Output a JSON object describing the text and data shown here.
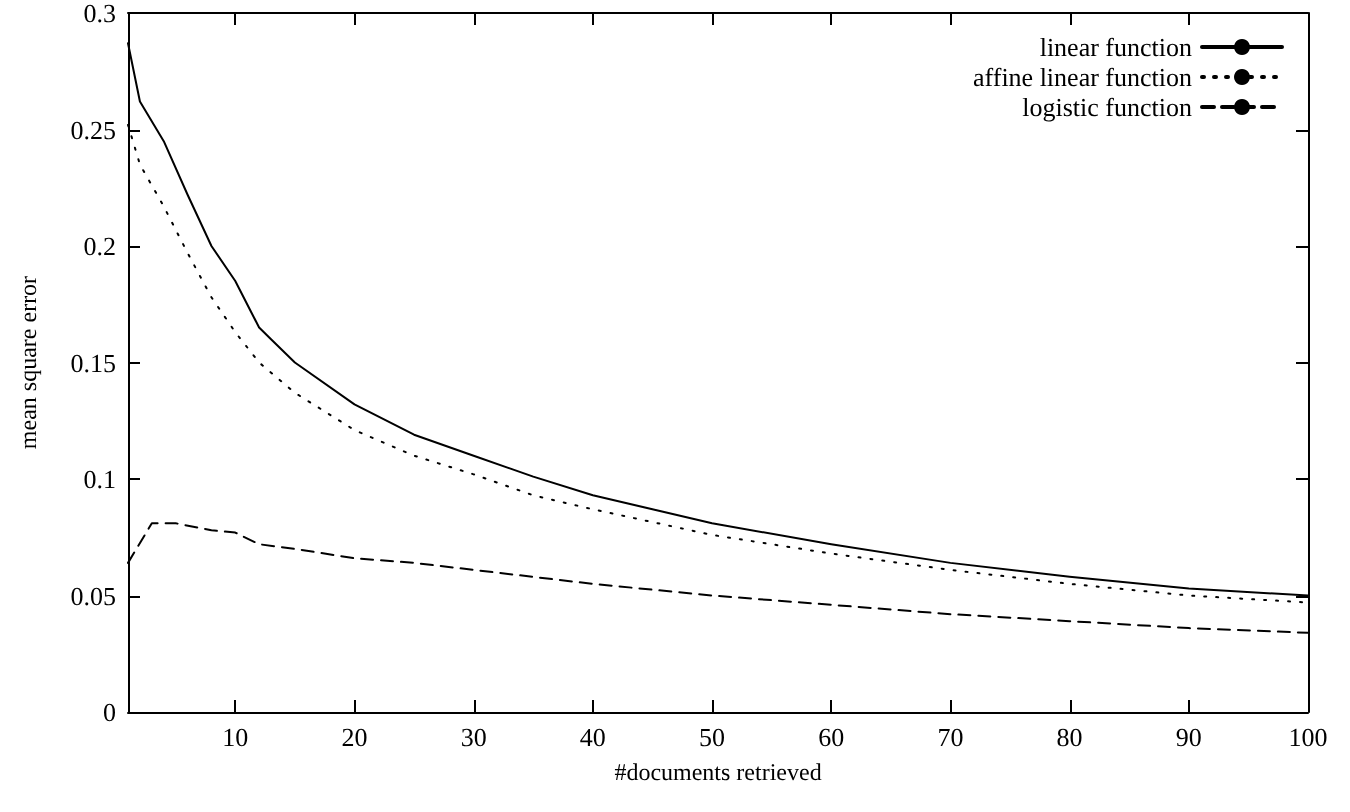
{
  "chart_data": {
    "type": "line",
    "xlabel": "#documents retrieved",
    "ylabel": "mean square error",
    "xlim": [
      1,
      100
    ],
    "xticks": [
      10,
      20,
      30,
      40,
      50,
      60,
      70,
      80,
      90,
      100
    ],
    "ylim": [
      0,
      0.3
    ],
    "yticks": [
      0,
      0.05,
      0.1,
      0.15,
      0.2,
      0.25,
      0.3
    ],
    "grid": false,
    "legend": "top right",
    "marker": "none",
    "series": [
      {
        "name": "linear function",
        "color": "#000000",
        "line_style": "solid",
        "x": [
          1,
          2,
          4,
          6,
          8,
          10,
          12,
          13,
          15,
          20,
          25,
          30,
          35,
          40,
          45,
          50,
          60,
          70,
          80,
          90,
          100
        ],
        "values": [
          0.287,
          0.262,
          0.245,
          0.222,
          0.2,
          0.185,
          0.165,
          0.16,
          0.15,
          0.132,
          0.119,
          0.11,
          0.101,
          0.093,
          0.087,
          0.081,
          0.072,
          0.064,
          0.058,
          0.053,
          0.05
        ]
      },
      {
        "name": "affine linear function",
        "color": "#000000",
        "line_style": "dotted",
        "x": [
          1,
          2,
          4,
          6,
          8,
          10,
          12,
          15,
          20,
          25,
          30,
          35,
          40,
          50,
          60,
          70,
          80,
          90,
          100
        ],
        "values": [
          0.252,
          0.235,
          0.217,
          0.197,
          0.178,
          0.163,
          0.15,
          0.137,
          0.121,
          0.11,
          0.102,
          0.093,
          0.087,
          0.076,
          0.068,
          0.061,
          0.055,
          0.05,
          0.047
        ]
      },
      {
        "name": "logistic function",
        "color": "#000000",
        "line_style": "dashed",
        "x": [
          1,
          3,
          5,
          8,
          10,
          12,
          15,
          20,
          25,
          30,
          40,
          50,
          60,
          70,
          80,
          90,
          100
        ],
        "values": [
          0.064,
          0.081,
          0.081,
          0.078,
          0.077,
          0.072,
          0.07,
          0.066,
          0.064,
          0.061,
          0.055,
          0.05,
          0.046,
          0.042,
          0.039,
          0.036,
          0.034
        ]
      }
    ]
  }
}
